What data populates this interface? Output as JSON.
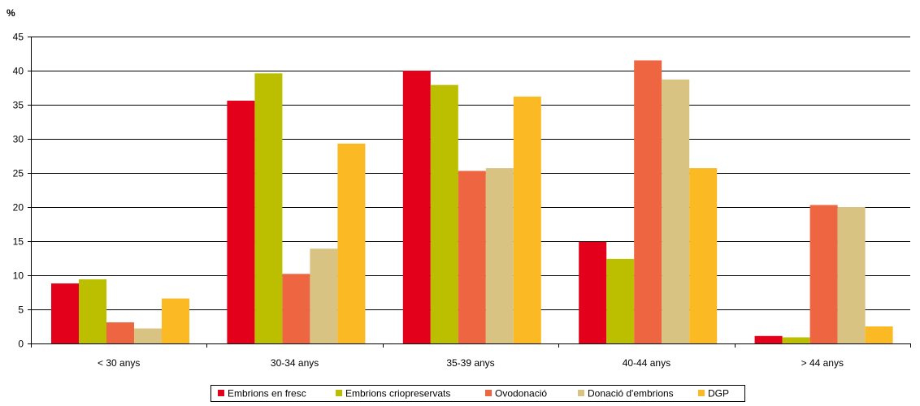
{
  "chart_data": {
    "type": "bar",
    "ylabel": "%",
    "ylim": [
      0,
      45
    ],
    "yticks": [
      0,
      5,
      10,
      15,
      20,
      25,
      30,
      35,
      40,
      45
    ],
    "grid": true,
    "legend_position": "bottom",
    "categories": [
      "< 30 anys",
      "30-34 anys",
      "35-39 anys",
      "40-44 anys",
      "> 44 anys"
    ],
    "series": [
      {
        "name": "Embrions en fresc",
        "color": "#e2001a",
        "values": [
          8.8,
          35.6,
          40.0,
          14.9,
          1.1
        ]
      },
      {
        "name": "Embrions criopreservats",
        "color": "#bcbf00",
        "values": [
          9.4,
          39.6,
          37.9,
          12.4,
          0.9
        ]
      },
      {
        "name": "Ovodonació",
        "color": "#ee6541",
        "values": [
          3.1,
          10.2,
          25.3,
          41.5,
          20.3
        ]
      },
      {
        "name": "Donació d'embrions",
        "color": "#d8c383",
        "values": [
          2.2,
          13.9,
          25.7,
          38.7,
          20.0
        ]
      },
      {
        "name": "DGP",
        "color": "#fbb923",
        "values": [
          6.6,
          29.3,
          36.2,
          25.7,
          2.5
        ]
      }
    ]
  }
}
